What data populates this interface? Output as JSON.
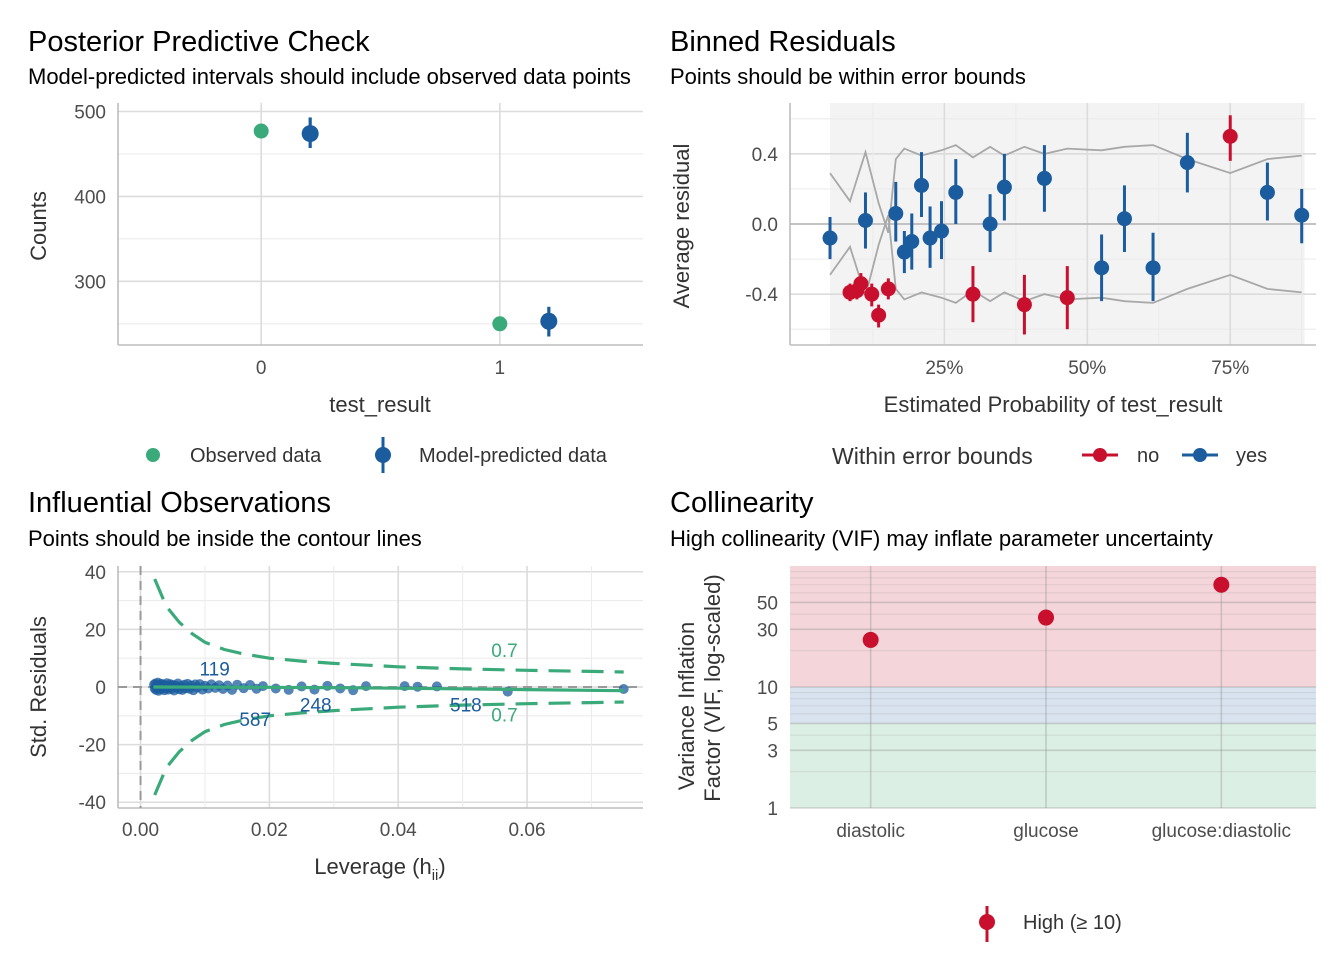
{
  "colors": {
    "observed": "#3aaa7a",
    "predicted": "#1b5c9e",
    "no": "#c8102e",
    "yes": "#1b5c9e",
    "contour": "#3aaa7a",
    "errbound": "#a8a8a8",
    "high_band": "#f4d6da",
    "moderate_band": "#d9e3ef",
    "low_band": "#dcefe4"
  },
  "chart_data": [
    {
      "id": "ppc",
      "type": "scatter",
      "title": "Posterior Predictive Check",
      "subtitle": "Model-predicted intervals should include observed data points",
      "xlabel": "test_result",
      "ylabel": "Counts",
      "x_ticks": [
        "0",
        "1"
      ],
      "y_ticks": [
        "300",
        "400",
        "500"
      ],
      "ylim": [
        225,
        510
      ],
      "observed": [
        {
          "x": "0",
          "y": 477
        },
        {
          "x": "1",
          "y": 250
        }
      ],
      "predicted": [
        {
          "x": "0",
          "y": 474,
          "lo": 457,
          "hi": 493
        },
        {
          "x": "1",
          "y": 253,
          "lo": 235,
          "hi": 270
        }
      ],
      "legend": {
        "observed": "Observed data",
        "predicted": "Model-predicted data",
        "position": "bottom"
      }
    },
    {
      "id": "binned",
      "type": "scatter",
      "title": "Binned Residuals",
      "subtitle": "Points should be within error bounds",
      "xlabel": "Estimated Probability of test_result",
      "ylabel": "Average residual",
      "x_ticks": [
        "25%",
        "50%",
        "75%"
      ],
      "y_ticks": [
        "-0.4",
        "0.0",
        "0.4"
      ],
      "xlim": [
        -0.02,
        0.9
      ],
      "ylim": [
        -0.69,
        0.69
      ],
      "shaded_x": [
        0.05,
        0.88
      ],
      "points": [
        {
          "x": 0.05,
          "y": -0.08,
          "lo": -0.2,
          "hi": 0.04,
          "ok": "yes"
        },
        {
          "x": 0.085,
          "y": -0.39,
          "lo": -0.44,
          "hi": -0.34,
          "ok": "no"
        },
        {
          "x": 0.097,
          "y": -0.38,
          "lo": -0.43,
          "hi": -0.32,
          "ok": "no"
        },
        {
          "x": 0.104,
          "y": -0.34,
          "lo": -0.4,
          "hi": -0.28,
          "ok": "no"
        },
        {
          "x": 0.112,
          "y": 0.02,
          "lo": -0.14,
          "hi": 0.18,
          "ok": "yes"
        },
        {
          "x": 0.123,
          "y": -0.4,
          "lo": -0.47,
          "hi": -0.34,
          "ok": "no"
        },
        {
          "x": 0.135,
          "y": -0.52,
          "lo": -0.59,
          "hi": -0.46,
          "ok": "no"
        },
        {
          "x": 0.152,
          "y": -0.37,
          "lo": -0.43,
          "hi": -0.31,
          "ok": "no"
        },
        {
          "x": 0.165,
          "y": 0.06,
          "lo": -0.1,
          "hi": 0.24,
          "ok": "yes"
        },
        {
          "x": 0.18,
          "y": -0.16,
          "lo": -0.28,
          "hi": -0.04,
          "ok": "yes"
        },
        {
          "x": 0.193,
          "y": -0.1,
          "lo": -0.26,
          "hi": 0.06,
          "ok": "yes"
        },
        {
          "x": 0.21,
          "y": 0.22,
          "lo": 0.04,
          "hi": 0.41,
          "ok": "yes"
        },
        {
          "x": 0.225,
          "y": -0.08,
          "lo": -0.25,
          "hi": 0.1,
          "ok": "yes"
        },
        {
          "x": 0.245,
          "y": -0.04,
          "lo": -0.2,
          "hi": 0.13,
          "ok": "yes"
        },
        {
          "x": 0.27,
          "y": 0.18,
          "lo": 0.0,
          "hi": 0.37,
          "ok": "yes"
        },
        {
          "x": 0.3,
          "y": -0.4,
          "lo": -0.56,
          "hi": -0.24,
          "ok": "no"
        },
        {
          "x": 0.33,
          "y": 0.0,
          "lo": -0.16,
          "hi": 0.17,
          "ok": "yes"
        },
        {
          "x": 0.355,
          "y": 0.21,
          "lo": 0.02,
          "hi": 0.4,
          "ok": "yes"
        },
        {
          "x": 0.39,
          "y": -0.46,
          "lo": -0.63,
          "hi": -0.29,
          "ok": "no"
        },
        {
          "x": 0.425,
          "y": 0.26,
          "lo": 0.07,
          "hi": 0.45,
          "ok": "yes"
        },
        {
          "x": 0.465,
          "y": -0.42,
          "lo": -0.6,
          "hi": -0.24,
          "ok": "no"
        },
        {
          "x": 0.525,
          "y": -0.25,
          "lo": -0.44,
          "hi": -0.06,
          "ok": "yes"
        },
        {
          "x": 0.565,
          "y": 0.03,
          "lo": -0.16,
          "hi": 0.22,
          "ok": "yes"
        },
        {
          "x": 0.615,
          "y": -0.25,
          "lo": -0.44,
          "hi": -0.05,
          "ok": "yes"
        },
        {
          "x": 0.675,
          "y": 0.35,
          "lo": 0.18,
          "hi": 0.52,
          "ok": "yes"
        },
        {
          "x": 0.75,
          "y": 0.5,
          "lo": 0.36,
          "hi": 0.62,
          "ok": "no"
        },
        {
          "x": 0.815,
          "y": 0.18,
          "lo": 0.02,
          "hi": 0.35,
          "ok": "yes"
        },
        {
          "x": 0.875,
          "y": 0.05,
          "lo": -0.11,
          "hi": 0.2,
          "ok": "yes"
        }
      ],
      "bound_upper": [
        [
          0.05,
          0.29
        ],
        [
          0.085,
          0.13
        ],
        [
          0.112,
          0.41
        ],
        [
          0.135,
          0.12
        ],
        [
          0.152,
          -0.05
        ],
        [
          0.165,
          0.37
        ],
        [
          0.18,
          0.43
        ],
        [
          0.21,
          0.39
        ],
        [
          0.245,
          0.42
        ],
        [
          0.27,
          0.45
        ],
        [
          0.3,
          0.38
        ],
        [
          0.33,
          0.44
        ],
        [
          0.355,
          0.39
        ],
        [
          0.39,
          0.44
        ],
        [
          0.425,
          0.4
        ],
        [
          0.465,
          0.43
        ],
        [
          0.525,
          0.42
        ],
        [
          0.565,
          0.44
        ],
        [
          0.615,
          0.45
        ],
        [
          0.675,
          0.37
        ],
        [
          0.75,
          0.29
        ],
        [
          0.815,
          0.37
        ],
        [
          0.875,
          0.39
        ]
      ],
      "bound_lower": [
        [
          0.05,
          -0.29
        ],
        [
          0.085,
          -0.13
        ],
        [
          0.112,
          -0.41
        ],
        [
          0.135,
          -0.12
        ],
        [
          0.152,
          0.05
        ],
        [
          0.165,
          -0.37
        ],
        [
          0.18,
          -0.43
        ],
        [
          0.21,
          -0.39
        ],
        [
          0.245,
          -0.42
        ],
        [
          0.27,
          -0.45
        ],
        [
          0.3,
          -0.38
        ],
        [
          0.33,
          -0.44
        ],
        [
          0.355,
          -0.39
        ],
        [
          0.39,
          -0.44
        ],
        [
          0.425,
          -0.4
        ],
        [
          0.465,
          -0.43
        ],
        [
          0.525,
          -0.42
        ],
        [
          0.565,
          -0.44
        ],
        [
          0.615,
          -0.45
        ],
        [
          0.675,
          -0.37
        ],
        [
          0.75,
          -0.29
        ],
        [
          0.815,
          -0.37
        ],
        [
          0.875,
          -0.39
        ]
      ],
      "legend": {
        "title": "Within error bounds",
        "no": "no",
        "yes": "yes",
        "position": "bottom"
      }
    },
    {
      "id": "influential",
      "type": "scatter",
      "title": "Influential Observations",
      "subtitle": "Points should be inside the contour lines",
      "xlabel": "Leverage (h",
      "xlabel_sub": "ii",
      "xlabel_end": ")",
      "ylabel": "Std. Residuals",
      "x_ticks": [
        "0.00",
        "0.02",
        "0.04",
        "0.06"
      ],
      "y_ticks": [
        "-40",
        "-20",
        "0",
        "20",
        "40"
      ],
      "xlim": [
        -0.0035,
        0.078
      ],
      "ylim": [
        -42,
        42
      ],
      "points": [
        [
          0.0021,
          0.8
        ],
        [
          0.0022,
          -0.5
        ],
        [
          0.0023,
          1.2
        ],
        [
          0.0024,
          -1.0
        ],
        [
          0.0025,
          0.3
        ],
        [
          0.0026,
          -0.2
        ],
        [
          0.0027,
          1.5
        ],
        [
          0.0028,
          -1.3
        ],
        [
          0.003,
          0.6
        ],
        [
          0.0031,
          -0.7
        ],
        [
          0.0032,
          1.1
        ],
        [
          0.0034,
          -0.4
        ],
        [
          0.0035,
          0.9
        ],
        [
          0.0037,
          -1.1
        ],
        [
          0.0038,
          0.4
        ],
        [
          0.004,
          -0.3
        ],
        [
          0.0041,
          1.3
        ],
        [
          0.0043,
          -0.9
        ],
        [
          0.0044,
          0.2
        ],
        [
          0.0046,
          1.0
        ],
        [
          0.0048,
          -0.6
        ],
        [
          0.005,
          0.7
        ],
        [
          0.0052,
          -1.2
        ],
        [
          0.0054,
          0.5
        ],
        [
          0.0056,
          -0.1
        ],
        [
          0.0058,
          1.2
        ],
        [
          0.006,
          -0.8
        ],
        [
          0.0062,
          0.3
        ],
        [
          0.0065,
          -1.0
        ],
        [
          0.0068,
          0.8
        ],
        [
          0.007,
          -0.4
        ],
        [
          0.0073,
          1.1
        ],
        [
          0.0076,
          -0.6
        ],
        [
          0.0079,
          0.5
        ],
        [
          0.0082,
          -1.1
        ],
        [
          0.0085,
          0.9
        ],
        [
          0.0088,
          -0.2
        ],
        [
          0.0092,
          1.0
        ],
        [
          0.0096,
          -0.9
        ],
        [
          0.01,
          0.4
        ],
        [
          0.0105,
          -0.5
        ],
        [
          0.011,
          0.9
        ],
        [
          0.0116,
          -0.3
        ],
        [
          0.0122,
          0.6
        ],
        [
          0.0128,
          -0.7
        ],
        [
          0.0135,
          0.5
        ],
        [
          0.0142,
          -1.0
        ],
        [
          0.015,
          0.8
        ],
        [
          0.016,
          -0.4
        ],
        [
          0.017,
          0.7
        ],
        [
          0.018,
          -0.6
        ],
        [
          0.019,
          0.3
        ],
        [
          0.021,
          -0.5
        ],
        [
          0.023,
          -1.0
        ],
        [
          0.025,
          0.2
        ],
        [
          0.027,
          -0.9
        ],
        [
          0.029,
          0.4
        ],
        [
          0.031,
          -0.5
        ],
        [
          0.033,
          -1.1
        ],
        [
          0.035,
          0.3
        ],
        [
          0.041,
          0.3
        ],
        [
          0.043,
          0.1
        ],
        [
          0.046,
          0.2
        ],
        [
          0.057,
          -1.6
        ],
        [
          0.075,
          -0.7
        ]
      ],
      "contour_upper": [
        [
          0.0022,
          37.5
        ],
        [
          0.004,
          28
        ],
        [
          0.006,
          22.5
        ],
        [
          0.008,
          18.5
        ],
        [
          0.01,
          15.5
        ],
        [
          0.013,
          13
        ],
        [
          0.016,
          11.5
        ],
        [
          0.02,
          10
        ],
        [
          0.025,
          9
        ],
        [
          0.03,
          8.2
        ],
        [
          0.04,
          7
        ],
        [
          0.05,
          6.3
        ],
        [
          0.06,
          5.8
        ],
        [
          0.07,
          5.4
        ],
        [
          0.075,
          5.2
        ]
      ],
      "contour_lower": [
        [
          0.0022,
          -37.5
        ],
        [
          0.004,
          -28
        ],
        [
          0.006,
          -22.5
        ],
        [
          0.008,
          -18.5
        ],
        [
          0.01,
          -15.5
        ],
        [
          0.013,
          -13
        ],
        [
          0.016,
          -11.5
        ],
        [
          0.02,
          -10
        ],
        [
          0.025,
          -9
        ],
        [
          0.03,
          -8.2
        ],
        [
          0.04,
          -7
        ],
        [
          0.05,
          -6.3
        ],
        [
          0.06,
          -5.8
        ],
        [
          0.07,
          -5.4
        ],
        [
          0.075,
          -5.2
        ]
      ],
      "contour_labels": [
        {
          "x": 0.0565,
          "y": 10.5,
          "text": "0.7"
        },
        {
          "x": 0.0565,
          "y": -12,
          "text": "0.7"
        }
      ],
      "smooth": [
        [
          0.002,
          0
        ],
        [
          0.02,
          -0.1
        ],
        [
          0.04,
          -0.4
        ],
        [
          0.06,
          -0.9
        ],
        [
          0.075,
          -1.3
        ]
      ],
      "point_labels": [
        {
          "x": 0.0115,
          "y": 4,
          "text": "119"
        },
        {
          "x": 0.0178,
          "y": -13.5,
          "text": "587"
        },
        {
          "x": 0.0272,
          "y": -8.5,
          "text": "248"
        },
        {
          "x": 0.0505,
          "y": -8.5,
          "text": "518"
        }
      ]
    },
    {
      "id": "vif",
      "type": "scatter",
      "title": "Collinearity",
      "subtitle": "High collinearity (VIF) may inflate parameter uncertainty",
      "xlabel": "",
      "ylabel_line1": "Variance Inflation",
      "ylabel_line2": "Factor (VIF, log-scaled)",
      "log_scale": true,
      "categories": [
        "diastolic",
        "glucose",
        "glucose:diastolic"
      ],
      "y_ticks": [
        "1",
        "3",
        "5",
        "10",
        "30",
        "50"
      ],
      "ylim": [
        1,
        100
      ],
      "values": [
        24.5,
        37.5,
        70
      ],
      "legend": {
        "high": "High (≥ 10)",
        "position": "bottom"
      }
    }
  ]
}
